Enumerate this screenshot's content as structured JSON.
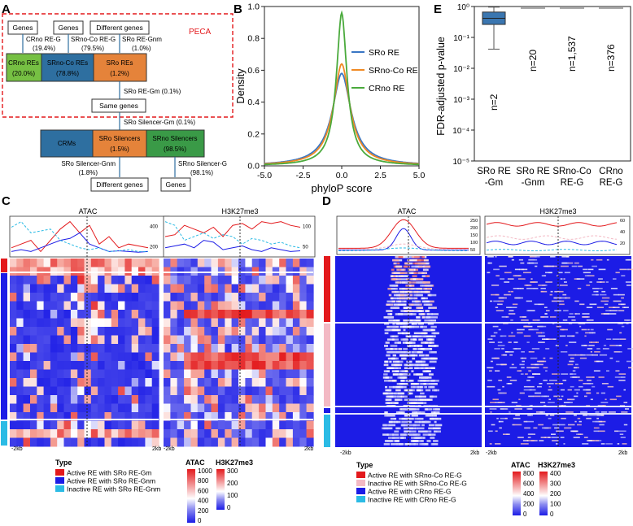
{
  "panels": {
    "A": "A",
    "B": "B",
    "C": "C",
    "D": "D",
    "E": "E"
  },
  "colors": {
    "green": "#76c043",
    "blue": "#2e6fa0",
    "orange": "#e5833a",
    "darkgreen": "#3a9a47",
    "red": "#e3191c",
    "heatblue": "#1c1ce6",
    "pink": "#f3b9c4",
    "cyan": "#2bbbe5",
    "peca": "#e3191c"
  },
  "panelA": {
    "peca_label": "PECA",
    "genes1": "Genes",
    "genes2": "Genes",
    "diff1": "Different genes",
    "crno_reg": "CRno RE-G",
    "crno_reg_pct": "(19.4%)",
    "srnoco_reg": "SRno-Co RE-G",
    "srnoco_reg_pct": "(79.5%)",
    "sro_regnm": "SRo RE-Gnm",
    "sro_regnm_pct": "(1.0%)",
    "crno_res": "CRno REs",
    "crno_res_pct": "(20.0%)",
    "srnoco_res": "SRno-Co REs",
    "srnoco_res_pct": "(78.8%)",
    "sro_res": "SRo REs",
    "sro_res_pct": "(1.2%)",
    "sro_regm": "SRo RE-Gm (0.1%)",
    "same_genes": "Same genes",
    "sro_silgm": "SRo Silencer-Gm (0.1%)",
    "crms": "CRMs",
    "sro_sil": "SRo Silencers",
    "sro_sil_pct": "(1.5%)",
    "srno_sil": "SRno Silencers",
    "srno_sil_pct": "(98.5%)",
    "sro_silgnm": "SRo Silencer-Gnm",
    "sro_silgnm_pct": "(1.8%)",
    "srno_silg": "SRno Silencer-G",
    "srno_silg_pct": "(98.1%)",
    "diff2": "Different genes",
    "genes3": "Genes"
  },
  "chart_data": [
    {
      "type": "line",
      "title": "",
      "xlabel": "phyloP score",
      "ylabel": "Density",
      "xlim": [
        -5,
        5
      ],
      "ylim": [
        0,
        1.0
      ],
      "xticks": [
        "-5.0",
        "-2.5",
        "0.0",
        "2.5",
        "5.0"
      ],
      "yticks": [
        "0.0",
        "0.2",
        "0.4",
        "0.6",
        "0.8",
        "1.0"
      ],
      "series": [
        {
          "name": "SRo RE",
          "color": "#3a76c4",
          "peak": 0.58,
          "width": 0.75
        },
        {
          "name": "SRno-Co RE",
          "color": "#f08a24",
          "peak": 0.64,
          "width": 0.65
        },
        {
          "name": "CRno RE",
          "color": "#4aaa3c",
          "peak": 0.96,
          "width": 0.42
        }
      ]
    },
    {
      "type": "box",
      "ylabel": "FDR-adjusted p-value",
      "ylim_log10": [
        -5,
        0
      ],
      "yticks": [
        "10⁻⁵",
        "10⁻⁴",
        "10⁻³",
        "10⁻²",
        "10⁻¹",
        "10⁰"
      ],
      "categories": [
        "SRo RE\n-Gm",
        "SRo RE\n-Gnm",
        "SRno-Co\nRE-G",
        "CRno\nRE-G"
      ],
      "n_labels": [
        "n=2",
        "n=20",
        "n=1,537",
        "n=376"
      ],
      "boxes": [
        {
          "whisker_lo": -1.38,
          "q1": -0.58,
          "median": -0.38,
          "q3": -0.18,
          "whisker_hi": -0.02
        },
        {
          "value": 0
        },
        {
          "value": 0
        },
        {
          "value": 0
        }
      ]
    }
  ],
  "panelC": {
    "atac_title": "ATAC",
    "h3_title": "H3K27me3",
    "atac_ticks": [
      "400",
      "200"
    ],
    "h3_ticks": [
      "100",
      "50"
    ],
    "x_left": "-2kb",
    "x_right": "2kb",
    "legend_type": "Type",
    "legend_items": [
      "Active RE with SRo RE-Gm",
      "Active RE with SRo RE-Gnm",
      "Inactive RE with SRo RE-Gnm"
    ],
    "legend_colors": [
      "#e3191c",
      "#1c1ce6",
      "#2bbbe5"
    ],
    "atac_scale_title": "ATAC",
    "atac_scale": [
      "1000",
      "800",
      "600",
      "400",
      "200",
      "0"
    ],
    "h3_scale_title": "H3K27me3",
    "h3_scale": [
      "300",
      "200",
      "100",
      "0"
    ]
  },
  "panelD": {
    "atac_title": "ATAC",
    "h3_title": "H3K27me3",
    "atac_ticks": [
      "250",
      "200",
      "150",
      "100",
      "50"
    ],
    "h3_ticks": [
      "60",
      "40",
      "20"
    ],
    "x_left": "-2kb",
    "x_right": "2kb",
    "legend_type": "Type",
    "legend_items": [
      "Active RE with SRno-Co RE-G",
      "Inactive RE with SRno-Co RE-G",
      "Active RE with CRno RE-G",
      "Inactive RE with CRno RE-G"
    ],
    "legend_colors": [
      "#e3191c",
      "#f3b9c4",
      "#1c1ce6",
      "#2bbbe5"
    ],
    "atac_scale_title": "ATAC",
    "atac_scale": [
      "800",
      "600",
      "400",
      "200",
      "0"
    ],
    "h3_scale_title": "H3K27me3",
    "h3_scale": [
      "400",
      "300",
      "200",
      "100",
      "0"
    ]
  }
}
